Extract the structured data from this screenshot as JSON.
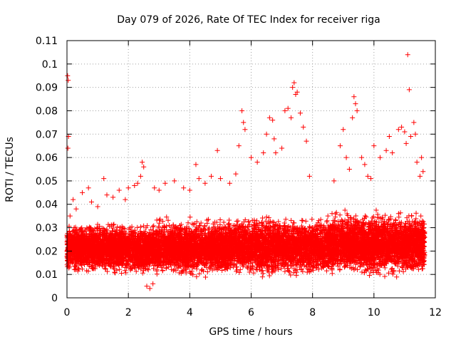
{
  "chart_data": {
    "type": "scatter",
    "title": "Day 079 of 2026, Rate Of TEC Index for receiver riga",
    "xlabel": "GPS time / hours",
    "ylabel": "ROTI / TECUs",
    "xlim": [
      0,
      12
    ],
    "ylim": [
      0,
      0.11
    ],
    "x_ticks": [
      0,
      2,
      4,
      6,
      8,
      10,
      12
    ],
    "y_ticks": [
      0,
      0.01,
      0.02,
      0.03,
      0.04,
      0.05,
      0.06,
      0.07,
      0.08,
      0.09,
      0.1,
      0.11
    ],
    "x_tick_labels": [
      "0",
      "2",
      "4",
      "6",
      "8",
      "10",
      "12"
    ],
    "y_tick_labels": [
      "0",
      "0.01",
      "0.02",
      "0.03",
      "0.04",
      "0.05",
      "0.06",
      "0.07",
      "0.08",
      "0.09",
      "0.1",
      "0.11"
    ],
    "grid": true,
    "marker": "+",
    "color": "#ff0000",
    "series": [
      {
        "name": "ROTI",
        "x": [
          0.02,
          0.04,
          0.05,
          0.03,
          0.05,
          0.06,
          0.1,
          0.2,
          0.3,
          0.5,
          0.7,
          0.8,
          1.0,
          1.2,
          1.3,
          1.5,
          1.7,
          1.9,
          2.0,
          2.2,
          2.3,
          2.4,
          2.45,
          2.5,
          2.6,
          2.7,
          2.8,
          2.85,
          3.0,
          3.2,
          3.5,
          3.8,
          4.0,
          4.2,
          4.3,
          4.5,
          4.7,
          4.9,
          5.0,
          5.3,
          5.5,
          5.6,
          5.7,
          5.75,
          5.8,
          6.0,
          6.2,
          6.4,
          6.5,
          6.6,
          6.7,
          6.75,
          6.8,
          7.0,
          7.1,
          7.2,
          7.3,
          7.35,
          7.4,
          7.45,
          7.5,
          7.6,
          7.7,
          7.8,
          7.9,
          8.0,
          8.2,
          8.5,
          8.7,
          8.9,
          9.0,
          9.1,
          9.2,
          9.3,
          9.35,
          9.4,
          9.45,
          9.6,
          9.7,
          9.8,
          9.9,
          10.0,
          10.2,
          10.4,
          10.5,
          10.6,
          10.8,
          10.9,
          11.0,
          11.05,
          11.1,
          11.15,
          11.2,
          11.3,
          11.35,
          11.4,
          11.5,
          11.55,
          11.6
        ],
        "y": [
          0.095,
          0.093,
          0.069,
          0.064,
          0.021,
          0.015,
          0.035,
          0.042,
          0.038,
          0.045,
          0.047,
          0.041,
          0.039,
          0.051,
          0.044,
          0.043,
          0.046,
          0.042,
          0.047,
          0.048,
          0.049,
          0.052,
          0.058,
          0.056,
          0.005,
          0.004,
          0.006,
          0.047,
          0.046,
          0.049,
          0.05,
          0.047,
          0.046,
          0.057,
          0.051,
          0.049,
          0.052,
          0.063,
          0.051,
          0.049,
          0.053,
          0.065,
          0.08,
          0.075,
          0.072,
          0.06,
          0.058,
          0.062,
          0.07,
          0.077,
          0.076,
          0.068,
          0.062,
          0.064,
          0.08,
          0.081,
          0.077,
          0.09,
          0.092,
          0.087,
          0.088,
          0.079,
          0.073,
          0.067,
          0.052,
          0.03,
          0.033,
          0.035,
          0.05,
          0.065,
          0.072,
          0.06,
          0.055,
          0.077,
          0.086,
          0.083,
          0.08,
          0.06,
          0.057,
          0.052,
          0.051,
          0.065,
          0.06,
          0.063,
          0.069,
          0.062,
          0.072,
          0.073,
          0.071,
          0.066,
          0.104,
          0.089,
          0.069,
          0.075,
          0.07,
          0.058,
          0.052,
          0.06,
          0.054
        ]
      }
    ],
    "dense_band": [
      {
        "x0": 0,
        "x1": 2.9,
        "y_low": 0.009,
        "y_high": 0.033,
        "count": 2600
      },
      {
        "x0": 2.9,
        "x1": 5.2,
        "y_low": 0.008,
        "y_high": 0.035,
        "count": 2000
      },
      {
        "x0": 5.2,
        "x1": 8.6,
        "y_low": 0.008,
        "y_high": 0.036,
        "count": 2800
      },
      {
        "x0": 8.6,
        "x1": 11.65,
        "y_low": 0.008,
        "y_high": 0.038,
        "count": 2900
      }
    ]
  }
}
